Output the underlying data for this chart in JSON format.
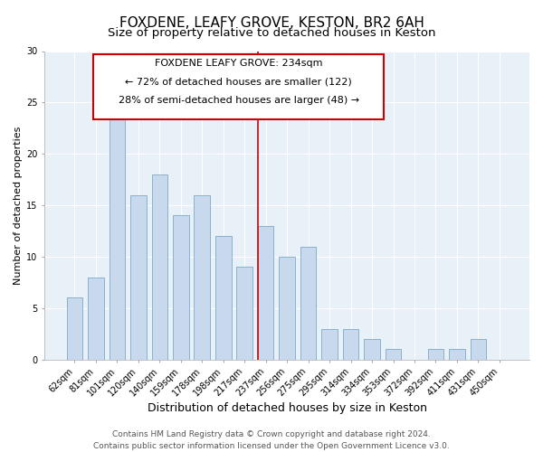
{
  "title": "FOXDENE, LEAFY GROVE, KESTON, BR2 6AH",
  "subtitle": "Size of property relative to detached houses in Keston",
  "xlabel": "Distribution of detached houses by size in Keston",
  "ylabel": "Number of detached properties",
  "categories": [
    "62sqm",
    "81sqm",
    "101sqm",
    "120sqm",
    "140sqm",
    "159sqm",
    "178sqm",
    "198sqm",
    "217sqm",
    "237sqm",
    "256sqm",
    "275sqm",
    "295sqm",
    "314sqm",
    "334sqm",
    "353sqm",
    "372sqm",
    "392sqm",
    "411sqm",
    "431sqm",
    "450sqm"
  ],
  "values": [
    6,
    8,
    25,
    16,
    18,
    14,
    16,
    12,
    9,
    13,
    10,
    11,
    3,
    3,
    2,
    1,
    0,
    1,
    1,
    2,
    0
  ],
  "bar_color": "#c8d8ed",
  "bar_edgecolor": "#7aaac8",
  "highlight_index": 9,
  "highlight_line_color": "#cc0000",
  "ylim": [
    0,
    30
  ],
  "yticks": [
    0,
    5,
    10,
    15,
    20,
    25,
    30
  ],
  "annotation_title": "FOXDENE LEAFY GROVE: 234sqm",
  "annotation_line1": "← 72% of detached houses are smaller (122)",
  "annotation_line2": "28% of semi-detached houses are larger (48) →",
  "annotation_box_edgecolor": "#cc0000",
  "annotation_box_facecolor": "#ffffff",
  "footer_line1": "Contains HM Land Registry data © Crown copyright and database right 2024.",
  "footer_line2": "Contains public sector information licensed under the Open Government Licence v3.0.",
  "background_color": "#ffffff",
  "plot_bg_color": "#e8f0f8",
  "grid_color": "#ffffff",
  "title_fontsize": 11,
  "subtitle_fontsize": 9.5,
  "xlabel_fontsize": 9,
  "ylabel_fontsize": 8,
  "tick_fontsize": 7,
  "footer_fontsize": 6.5,
  "annotation_fontsize": 8
}
